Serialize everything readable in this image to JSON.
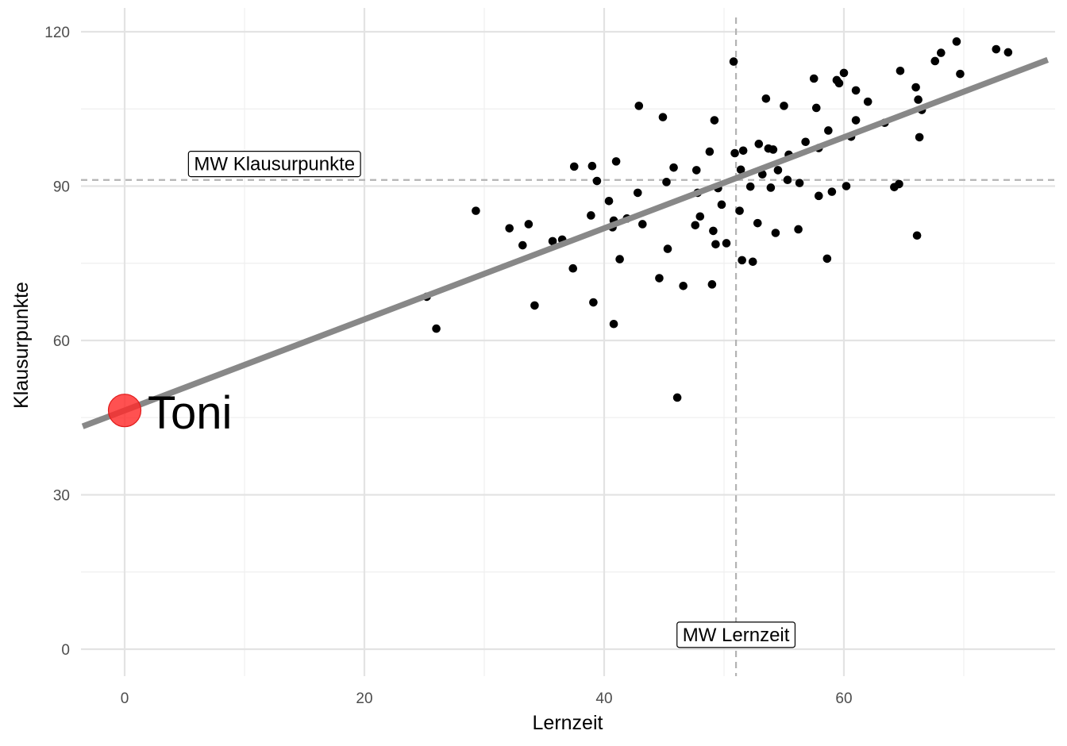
{
  "chart_data": {
    "type": "scatter",
    "title": "",
    "xlabel": "Lernzeit",
    "ylabel": "Klausurpunkte",
    "xlim": [
      -3.5,
      77
    ],
    "ylim": [
      -5,
      124
    ],
    "xticks": [
      0,
      20,
      40,
      60
    ],
    "yticks": [
      0,
      30,
      60,
      90,
      120
    ],
    "grid": true,
    "legend": "none",
    "points": [
      [
        25.2,
        68.5
      ],
      [
        26.0,
        62.3
      ],
      [
        29.3,
        85.2
      ],
      [
        32.1,
        81.8
      ],
      [
        33.2,
        78.5
      ],
      [
        33.7,
        82.6
      ],
      [
        34.2,
        66.8
      ],
      [
        35.7,
        79.3
      ],
      [
        36.5,
        79.6
      ],
      [
        37.4,
        74.0
      ],
      [
        37.5,
        93.8
      ],
      [
        38.9,
        84.3
      ],
      [
        39.0,
        93.9
      ],
      [
        39.1,
        67.4
      ],
      [
        39.4,
        91.0
      ],
      [
        40.4,
        87.1
      ],
      [
        40.7,
        82.0
      ],
      [
        40.8,
        83.3
      ],
      [
        40.8,
        63.2
      ],
      [
        41.0,
        94.8
      ],
      [
        41.3,
        75.8
      ],
      [
        41.9,
        83.7
      ],
      [
        42.8,
        88.7
      ],
      [
        42.9,
        105.6
      ],
      [
        43.2,
        82.6
      ],
      [
        44.6,
        72.1
      ],
      [
        44.9,
        103.4
      ],
      [
        45.2,
        90.8
      ],
      [
        45.3,
        77.8
      ],
      [
        45.8,
        93.6
      ],
      [
        46.1,
        48.9
      ],
      [
        46.6,
        70.6
      ],
      [
        47.6,
        82.4
      ],
      [
        47.7,
        93.1
      ],
      [
        47.8,
        88.7
      ],
      [
        48.0,
        84.1
      ],
      [
        48.8,
        96.7
      ],
      [
        49.0,
        70.9
      ],
      [
        49.1,
        81.3
      ],
      [
        49.2,
        102.8
      ],
      [
        49.3,
        78.7
      ],
      [
        49.5,
        89.6
      ],
      [
        49.8,
        86.4
      ],
      [
        50.2,
        78.9
      ],
      [
        50.8,
        114.2
      ],
      [
        50.9,
        96.4
      ],
      [
        51.3,
        85.2
      ],
      [
        51.4,
        93.2
      ],
      [
        51.5,
        75.6
      ],
      [
        51.6,
        96.9
      ],
      [
        52.2,
        89.9
      ],
      [
        52.4,
        75.3
      ],
      [
        52.8,
        82.8
      ],
      [
        52.9,
        98.2
      ],
      [
        53.2,
        92.3
      ],
      [
        53.5,
        107.0
      ],
      [
        53.7,
        97.3
      ],
      [
        53.9,
        89.7
      ],
      [
        54.1,
        97.1
      ],
      [
        54.3,
        80.9
      ],
      [
        54.5,
        93.1
      ],
      [
        55.0,
        105.6
      ],
      [
        55.3,
        91.2
      ],
      [
        55.4,
        96.1
      ],
      [
        56.2,
        81.6
      ],
      [
        56.3,
        90.6
      ],
      [
        56.8,
        98.6
      ],
      [
        57.5,
        110.9
      ],
      [
        57.7,
        105.2
      ],
      [
        57.9,
        97.4
      ],
      [
        57.9,
        88.1
      ],
      [
        58.7,
        100.8
      ],
      [
        58.6,
        75.9
      ],
      [
        59.0,
        88.9
      ],
      [
        59.4,
        110.6
      ],
      [
        59.6,
        110.0
      ],
      [
        60.0,
        112.0
      ],
      [
        60.2,
        90.0
      ],
      [
        60.6,
        99.6
      ],
      [
        61.0,
        108.6
      ],
      [
        61.0,
        102.8
      ],
      [
        62.0,
        106.4
      ],
      [
        63.4,
        102.3
      ],
      [
        64.2,
        89.8
      ],
      [
        64.6,
        90.4
      ],
      [
        64.7,
        112.4
      ],
      [
        66.0,
        109.2
      ],
      [
        66.1,
        80.4
      ],
      [
        66.2,
        106.8
      ],
      [
        66.3,
        99.5
      ],
      [
        66.5,
        104.8
      ],
      [
        67.6,
        114.3
      ],
      [
        68.1,
        115.9
      ],
      [
        69.4,
        118.1
      ],
      [
        69.7,
        111.8
      ],
      [
        72.7,
        116.6
      ],
      [
        73.7,
        116.0
      ]
    ],
    "regression_line": {
      "intercept": 46.4,
      "slope": 0.885
    },
    "mean_lines": {
      "x": 51.0,
      "y": 91.2
    },
    "annotations": [
      {
        "text": "MW Klausurpunkte",
        "x": 12.5,
        "y": 94.3
      },
      {
        "text": "MW Lernzeit",
        "x": 51.0,
        "y": 2.8
      }
    ],
    "highlight": {
      "label": "Toni",
      "x": 0,
      "y": 46.4,
      "color": "#ff2b2b"
    }
  },
  "colors": {
    "points": "#000000",
    "regression": "#888888",
    "mean_lines": "#b3b3b3",
    "grid_major": "#e3e3e3",
    "grid_minor": "#efefef",
    "highlight": "#ff2b2b"
  }
}
